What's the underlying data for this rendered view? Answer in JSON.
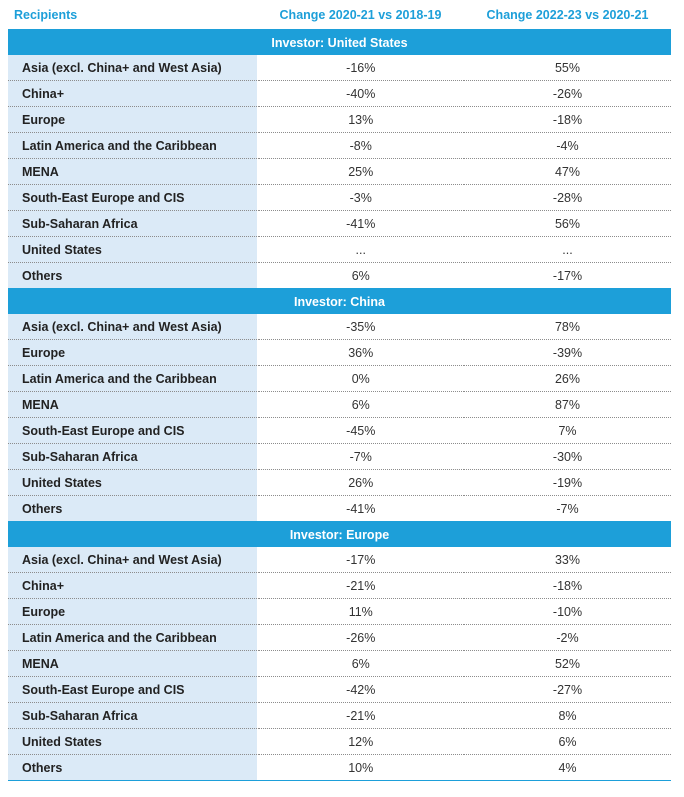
{
  "header": {
    "col1": "Recipients",
    "col2": "Change 2020-21 vs 2018-19",
    "col3": "Change 2022-23 vs 2020-21"
  },
  "sections": [
    {
      "title": "Investor: United States",
      "rows": [
        {
          "name": "Asia (excl. China+ and West Asia)",
          "v1": "-16%",
          "v2": "55%"
        },
        {
          "name": "China+",
          "v1": "-40%",
          "v2": "-26%"
        },
        {
          "name": "Europe",
          "v1": "13%",
          "v2": "-18%"
        },
        {
          "name": "Latin America and the Caribbean",
          "v1": "-8%",
          "v2": "-4%"
        },
        {
          "name": "MENA",
          "v1": "25%",
          "v2": "47%"
        },
        {
          "name": "South-East Europe and CIS",
          "v1": "-3%",
          "v2": "-28%"
        },
        {
          "name": "Sub-Saharan Africa",
          "v1": "-41%",
          "v2": "56%"
        },
        {
          "name": "United States",
          "v1": "...",
          "v2": "..."
        },
        {
          "name": "Others",
          "v1": "6%",
          "v2": "-17%"
        }
      ]
    },
    {
      "title": "Investor: China",
      "rows": [
        {
          "name": "Asia (excl. China+ and West Asia)",
          "v1": "-35%",
          "v2": "78%"
        },
        {
          "name": "Europe",
          "v1": "36%",
          "v2": "-39%"
        },
        {
          "name": "Latin America and the Caribbean",
          "v1": "0%",
          "v2": "26%"
        },
        {
          "name": "MENA",
          "v1": "6%",
          "v2": "87%"
        },
        {
          "name": "South-East Europe and CIS",
          "v1": "-45%",
          "v2": "7%"
        },
        {
          "name": "Sub-Saharan Africa",
          "v1": "-7%",
          "v2": "-30%"
        },
        {
          "name": "United States",
          "v1": "26%",
          "v2": "-19%"
        },
        {
          "name": "Others",
          "v1": "-41%",
          "v2": "-7%"
        }
      ]
    },
    {
      "title": "Investor: Europe",
      "rows": [
        {
          "name": "Asia (excl. China+ and West Asia)",
          "v1": "-17%",
          "v2": "33%"
        },
        {
          "name": "China+",
          "v1": "-21%",
          "v2": "-18%"
        },
        {
          "name": "Europe",
          "v1": "11%",
          "v2": "-10%"
        },
        {
          "name": "Latin America and the Caribbean",
          "v1": "-26%",
          "v2": "-2%"
        },
        {
          "name": "MENA",
          "v1": "6%",
          "v2": "52%"
        },
        {
          "name": "South-East Europe and CIS",
          "v1": "-42%",
          "v2": "-27%"
        },
        {
          "name": "Sub-Saharan Africa",
          "v1": "-21%",
          "v2": "8%"
        },
        {
          "name": "United States",
          "v1": "12%",
          "v2": "6%"
        },
        {
          "name": "Others",
          "v1": "10%",
          "v2": "4%"
        }
      ]
    }
  ]
}
